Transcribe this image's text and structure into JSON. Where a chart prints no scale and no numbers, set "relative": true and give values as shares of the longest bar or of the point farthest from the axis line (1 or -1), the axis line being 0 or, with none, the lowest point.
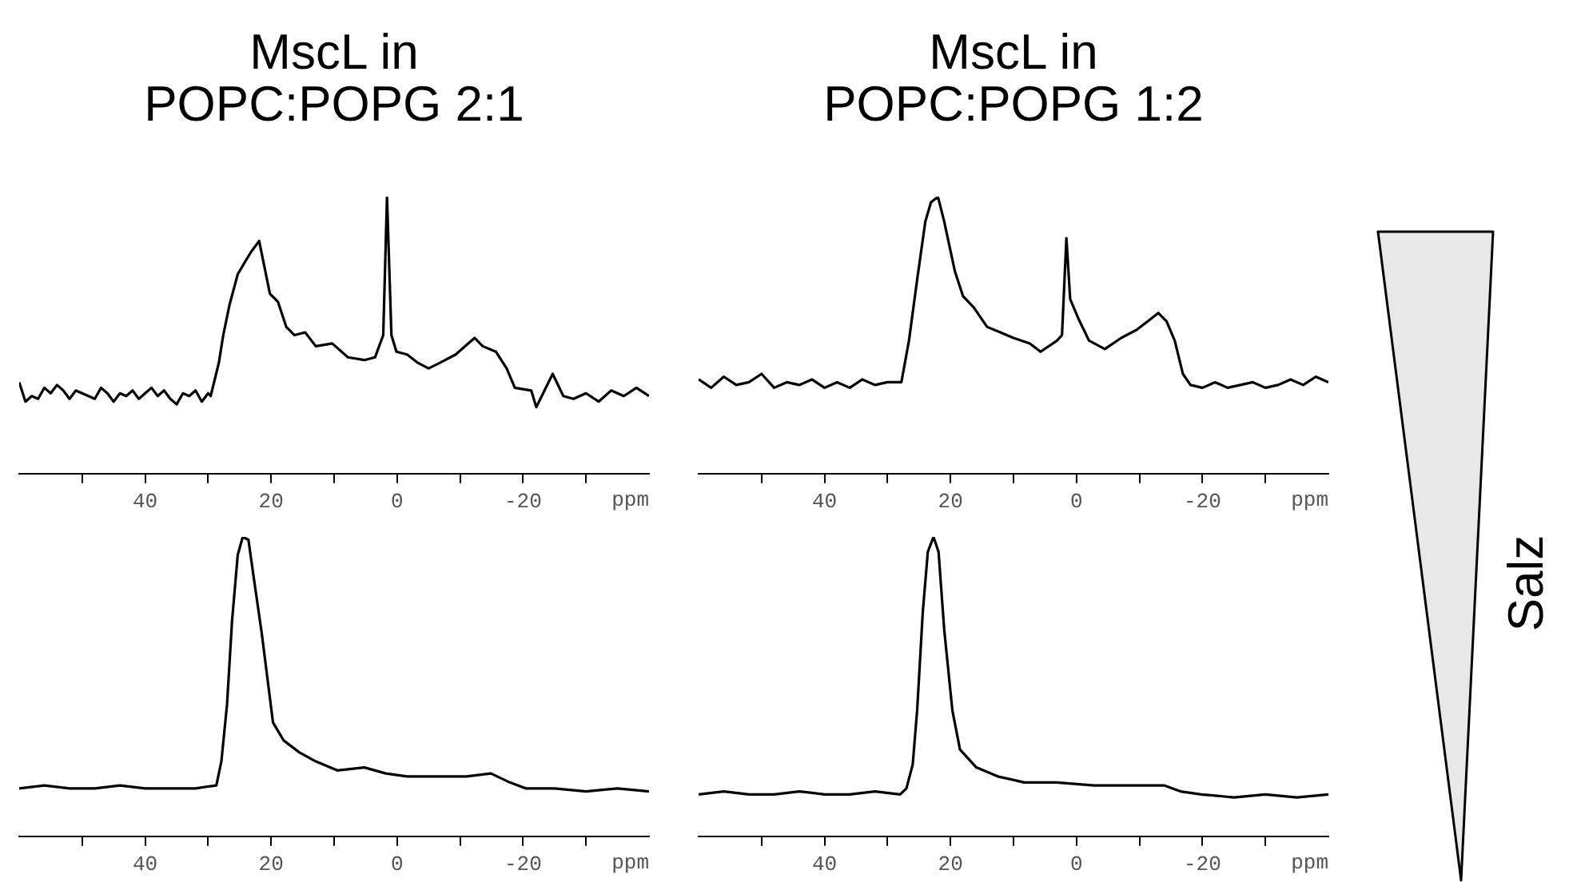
{
  "chart_data": [
    {
      "type": "line",
      "title": "MscL in\nPOPC:POPG 2:1",
      "xlabel": "ppm",
      "relative": true,
      "marker": "none",
      "xlim": [
        60,
        -40
      ],
      "xticks": [
        {
          "value": 50,
          "label": null
        },
        40,
        {
          "value": 30,
          "label": null
        },
        20,
        {
          "value": 10,
          "label": null
        },
        0,
        {
          "value": -10,
          "label": null
        },
        -20,
        {
          "value": -30,
          "label": null
        }
      ],
      "series": [
        {
          "color": "#000000",
          "x": [
            60,
            59,
            58,
            57,
            56,
            55,
            54,
            53,
            52,
            51,
            50,
            49,
            48,
            47,
            46,
            45,
            44,
            43,
            42,
            41,
            40,
            39,
            38,
            37,
            36,
            35,
            34,
            33,
            32,
            31,
            30,
            29.6,
            28.3,
            27.6,
            26.6,
            25.3,
            24,
            23.2,
            21.9,
            21,
            20.2,
            18.9,
            17.6,
            16.3,
            14.6,
            12.9,
            10.3,
            7.8,
            5.2,
            3.5,
            2.2,
            1.6,
            0.9,
            0.1,
            -1.6,
            -3.3,
            -5,
            -6.8,
            -9.3,
            -12.3,
            -13.6,
            -15.7,
            -17.4,
            -18.7,
            -21.3,
            -22.1,
            -24.7,
            -26.4,
            -28,
            -30,
            -32,
            -34,
            -36,
            -38,
            -40
          ],
          "values": [
            0.33,
            0.26,
            0.28,
            0.27,
            0.31,
            0.29,
            0.32,
            0.3,
            0.27,
            0.3,
            0.29,
            0.28,
            0.27,
            0.31,
            0.29,
            0.26,
            0.29,
            0.28,
            0.3,
            0.27,
            0.29,
            0.31,
            0.28,
            0.3,
            0.27,
            0.25,
            0.29,
            0.28,
            0.3,
            0.26,
            0.29,
            0.28,
            0.4,
            0.5,
            0.61,
            0.72,
            0.77,
            0.8,
            0.84,
            0.74,
            0.65,
            0.62,
            0.53,
            0.5,
            0.51,
            0.46,
            0.47,
            0.42,
            0.41,
            0.42,
            0.5,
            1.0,
            0.5,
            0.44,
            0.43,
            0.4,
            0.38,
            0.4,
            0.43,
            0.49,
            0.46,
            0.44,
            0.38,
            0.31,
            0.3,
            0.24,
            0.36,
            0.28,
            0.27,
            0.29,
            0.26,
            0.3,
            0.28,
            0.31,
            0.28
          ]
        }
      ]
    },
    {
      "type": "line",
      "title": "MscL in\nPOPC:POPG 1:2",
      "xlabel": "ppm",
      "relative": true,
      "marker": "none",
      "xlim": [
        60,
        -40
      ],
      "xticks": [
        {
          "value": 50,
          "label": null
        },
        40,
        {
          "value": 30,
          "label": null
        },
        20,
        {
          "value": 10,
          "label": null
        },
        0,
        {
          "value": -10,
          "label": null
        },
        -20,
        {
          "value": -30,
          "label": null
        }
      ],
      "series": [
        {
          "color": "#000000",
          "x": [
            60,
            58,
            56,
            54,
            52,
            50,
            48,
            46,
            44,
            42,
            40,
            38,
            36,
            34,
            32,
            30,
            27.8,
            26.6,
            25.3,
            24,
            23.1,
            22,
            21,
            19.3,
            18,
            16.3,
            14.2,
            12.1,
            10,
            7.4,
            5.7,
            3.1,
            2.3,
            1.6,
            1,
            -0.3,
            -2,
            -4.5,
            -7.1,
            -9.6,
            -11.3,
            -13,
            -14.3,
            -15.6,
            -16.9,
            -18.1,
            -20,
            -22,
            -24,
            -26,
            -28,
            -30,
            -32,
            -34,
            -36,
            -38,
            -40
          ],
          "values": [
            0.34,
            0.31,
            0.35,
            0.32,
            0.33,
            0.36,
            0.31,
            0.33,
            0.32,
            0.34,
            0.31,
            0.33,
            0.31,
            0.34,
            0.32,
            0.33,
            0.33,
            0.48,
            0.7,
            0.91,
            0.98,
            1.0,
            0.91,
            0.73,
            0.64,
            0.6,
            0.53,
            0.51,
            0.49,
            0.47,
            0.44,
            0.48,
            0.5,
            0.85,
            0.63,
            0.56,
            0.48,
            0.45,
            0.49,
            0.52,
            0.55,
            0.58,
            0.55,
            0.48,
            0.36,
            0.32,
            0.31,
            0.33,
            0.31,
            0.32,
            0.33,
            0.31,
            0.32,
            0.34,
            0.32,
            0.35,
            0.33
          ]
        }
      ]
    },
    {
      "type": "line",
      "xlabel": "ppm",
      "relative": true,
      "marker": "none",
      "xlim": [
        60,
        -40
      ],
      "xticks": [
        {
          "value": 50,
          "label": null
        },
        40,
        {
          "value": 30,
          "label": null
        },
        20,
        {
          "value": 10,
          "label": null
        },
        0,
        {
          "value": -10,
          "label": null
        },
        -20,
        {
          "value": -30,
          "label": null
        }
      ],
      "series": [
        {
          "color": "#000000",
          "x": [
            60,
            56,
            52,
            48,
            44,
            40,
            36,
            32,
            28.7,
            27.9,
            27,
            26.2,
            25.3,
            24.5,
            23.6,
            22.8,
            21.5,
            19.7,
            18,
            15.5,
            12.9,
            9.5,
            5.2,
            1.8,
            -1.6,
            -6.8,
            -11,
            -14.9,
            -17.9,
            -20.4,
            -25,
            -30,
            -35,
            -40
          ],
          "values": [
            0.16,
            0.17,
            0.16,
            0.16,
            0.17,
            0.16,
            0.16,
            0.16,
            0.17,
            0.25,
            0.44,
            0.72,
            0.94,
            1.0,
            0.99,
            0.87,
            0.68,
            0.38,
            0.32,
            0.28,
            0.25,
            0.22,
            0.23,
            0.21,
            0.2,
            0.2,
            0.2,
            0.21,
            0.18,
            0.16,
            0.16,
            0.15,
            0.16,
            0.15
          ]
        }
      ]
    },
    {
      "type": "line",
      "xlabel": "ppm",
      "relative": true,
      "marker": "none",
      "xlim": [
        60,
        -40
      ],
      "xticks": [
        {
          "value": 50,
          "label": null
        },
        40,
        {
          "value": 30,
          "label": null
        },
        20,
        {
          "value": 10,
          "label": null
        },
        0,
        {
          "value": -10,
          "label": null
        },
        -20,
        {
          "value": -30,
          "label": null
        }
      ],
      "series": [
        {
          "color": "#000000",
          "x": [
            60,
            56,
            52,
            48,
            44,
            40,
            36,
            32,
            28,
            27,
            26,
            25.3,
            24.4,
            23.6,
            22.7,
            21.9,
            21,
            19.7,
            18.5,
            15.9,
            12.5,
            8.3,
            3.2,
            -2.8,
            -9.6,
            -13.9,
            -16.5,
            -19.8,
            -25,
            -30,
            -35,
            -40
          ],
          "values": [
            0.14,
            0.15,
            0.14,
            0.14,
            0.15,
            0.14,
            0.14,
            0.15,
            0.14,
            0.16,
            0.24,
            0.42,
            0.75,
            0.95,
            1.0,
            0.95,
            0.69,
            0.42,
            0.29,
            0.23,
            0.2,
            0.18,
            0.18,
            0.17,
            0.17,
            0.17,
            0.15,
            0.14,
            0.13,
            0.14,
            0.13,
            0.14
          ]
        }
      ]
    },
    {
      "type": "other",
      "annotations": [
        "Salz"
      ]
    }
  ]
}
